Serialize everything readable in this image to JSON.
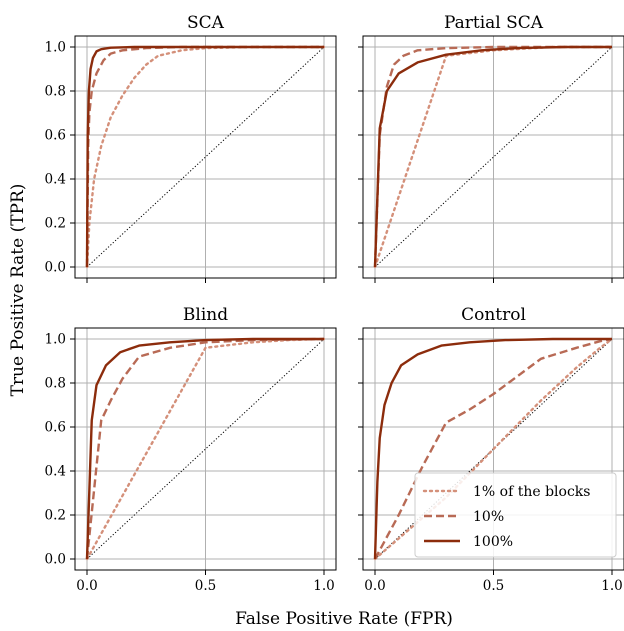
{
  "figure": {
    "xlabel": "False Positive Rate (FPR)",
    "ylabel": "True Positive Rate (TPR)"
  },
  "legend": {
    "entries": [
      {
        "label": "1% of the blocks",
        "style": "dotted",
        "color": "#d4907a"
      },
      {
        "label": "10%",
        "style": "dashed",
        "color": "#b86a55"
      },
      {
        "label": "100%",
        "style": "solid",
        "color": "#8c2c0c"
      }
    ],
    "panel": 3,
    "placement": "lower-right"
  },
  "chart_data": [
    {
      "type": "line",
      "title": "SCA",
      "xlim": [
        0,
        1
      ],
      "ylim": [
        0,
        1
      ],
      "x_ticks": [
        "0.0",
        "0.5",
        "1.0"
      ],
      "y_ticks": [
        "0.0",
        "0.2",
        "0.4",
        "0.6",
        "0.8",
        "1.0"
      ],
      "grid": true,
      "diagonal": true,
      "series": [
        {
          "name": "1% of the blocks",
          "points": [
            [
              0,
              0
            ],
            [
              0.01,
              0.2
            ],
            [
              0.03,
              0.4
            ],
            [
              0.06,
              0.55
            ],
            [
              0.1,
              0.68
            ],
            [
              0.15,
              0.78
            ],
            [
              0.2,
              0.86
            ],
            [
              0.25,
              0.92
            ],
            [
              0.3,
              0.96
            ],
            [
              0.4,
              0.985
            ],
            [
              0.5,
              0.995
            ],
            [
              0.7,
              1
            ],
            [
              1,
              1
            ]
          ]
        },
        {
          "name": "10%",
          "points": [
            [
              0,
              0
            ],
            [
              0.005,
              0.55
            ],
            [
              0.01,
              0.7
            ],
            [
              0.02,
              0.8
            ],
            [
              0.04,
              0.88
            ],
            [
              0.07,
              0.94
            ],
            [
              0.1,
              0.97
            ],
            [
              0.15,
              0.985
            ],
            [
              0.25,
              0.995
            ],
            [
              0.4,
              1
            ],
            [
              1,
              1
            ]
          ]
        },
        {
          "name": "100%",
          "points": [
            [
              0,
              0
            ],
            [
              0.003,
              0.6
            ],
            [
              0.008,
              0.8
            ],
            [
              0.015,
              0.9
            ],
            [
              0.025,
              0.95
            ],
            [
              0.04,
              0.98
            ],
            [
              0.06,
              0.99
            ],
            [
              0.1,
              0.997
            ],
            [
              0.2,
              1
            ],
            [
              1,
              1
            ]
          ]
        }
      ]
    },
    {
      "type": "line",
      "title": "Partial SCA",
      "xlim": [
        0,
        1
      ],
      "ylim": [
        0,
        1
      ],
      "x_ticks": [
        "0.0",
        "0.5",
        "1.0"
      ],
      "y_ticks": [
        "0.0",
        "0.2",
        "0.4",
        "0.6",
        "0.8",
        "1.0"
      ],
      "grid": true,
      "diagonal": true,
      "series": [
        {
          "name": "1% of the blocks",
          "points": [
            [
              0,
              0
            ],
            [
              0.3,
              0.96
            ],
            [
              0.5,
              0.985
            ],
            [
              0.75,
              1
            ],
            [
              1,
              1
            ]
          ]
        },
        {
          "name": "10%",
          "points": [
            [
              0,
              0
            ],
            [
              0.02,
              0.6
            ],
            [
              0.05,
              0.82
            ],
            [
              0.08,
              0.92
            ],
            [
              0.12,
              0.96
            ],
            [
              0.18,
              0.985
            ],
            [
              0.3,
              0.995
            ],
            [
              0.5,
              1
            ],
            [
              1,
              1
            ]
          ]
        },
        {
          "name": "100%",
          "points": [
            [
              0,
              0
            ],
            [
              0.02,
              0.63
            ],
            [
              0.05,
              0.8
            ],
            [
              0.1,
              0.88
            ],
            [
              0.18,
              0.93
            ],
            [
              0.3,
              0.965
            ],
            [
              0.45,
              0.985
            ],
            [
              0.6,
              0.995
            ],
            [
              0.8,
              1
            ],
            [
              1,
              1
            ]
          ]
        }
      ]
    },
    {
      "type": "line",
      "title": "Blind",
      "xlim": [
        0,
        1
      ],
      "ylim": [
        0,
        1
      ],
      "x_ticks": [
        "0.0",
        "0.5",
        "1.0"
      ],
      "y_ticks": [
        "0.0",
        "0.2",
        "0.4",
        "0.6",
        "0.8",
        "1.0"
      ],
      "grid": true,
      "diagonal": true,
      "series": [
        {
          "name": "1% of the blocks",
          "points": [
            [
              0,
              0
            ],
            [
              0.5,
              0.96
            ],
            [
              0.7,
              0.985
            ],
            [
              0.85,
              0.995
            ],
            [
              1,
              1
            ]
          ]
        },
        {
          "name": "10%",
          "points": [
            [
              0,
              0
            ],
            [
              0.06,
              0.63
            ],
            [
              0.1,
              0.72
            ],
            [
              0.15,
              0.82
            ],
            [
              0.22,
              0.92
            ],
            [
              0.35,
              0.96
            ],
            [
              0.5,
              0.985
            ],
            [
              0.7,
              0.995
            ],
            [
              1,
              1
            ]
          ]
        },
        {
          "name": "100%",
          "points": [
            [
              0,
              0
            ],
            [
              0.02,
              0.63
            ],
            [
              0.04,
              0.79
            ],
            [
              0.08,
              0.88
            ],
            [
              0.14,
              0.94
            ],
            [
              0.22,
              0.97
            ],
            [
              0.35,
              0.985
            ],
            [
              0.5,
              0.995
            ],
            [
              0.7,
              1
            ],
            [
              1,
              1
            ]
          ]
        }
      ]
    },
    {
      "type": "line",
      "title": "Control",
      "xlim": [
        0,
        1
      ],
      "ylim": [
        0,
        1
      ],
      "x_ticks": [
        "0.0",
        "0.5",
        "1.0"
      ],
      "y_ticks": [
        "0.0",
        "0.2",
        "0.4",
        "0.6",
        "0.8",
        "1.0"
      ],
      "grid": true,
      "diagonal": true,
      "series": [
        {
          "name": "1% of the blocks",
          "points": [
            [
              0,
              0
            ],
            [
              0.3,
              0.28
            ],
            [
              0.5,
              0.5
            ],
            [
              0.7,
              0.72
            ],
            [
              0.85,
              0.87
            ],
            [
              0.95,
              0.96
            ],
            [
              1,
              1
            ]
          ]
        },
        {
          "name": "10%",
          "points": [
            [
              0,
              0
            ],
            [
              0.1,
              0.2
            ],
            [
              0.2,
              0.42
            ],
            [
              0.3,
              0.62
            ],
            [
              0.4,
              0.68
            ],
            [
              0.5,
              0.75
            ],
            [
              0.6,
              0.83
            ],
            [
              0.7,
              0.91
            ],
            [
              0.85,
              0.96
            ],
            [
              0.95,
              0.99
            ],
            [
              1,
              1
            ]
          ]
        },
        {
          "name": "100%",
          "points": [
            [
              0,
              0
            ],
            [
              0.01,
              0.35
            ],
            [
              0.02,
              0.55
            ],
            [
              0.04,
              0.7
            ],
            [
              0.07,
              0.8
            ],
            [
              0.11,
              0.88
            ],
            [
              0.18,
              0.93
            ],
            [
              0.28,
              0.97
            ],
            [
              0.4,
              0.985
            ],
            [
              0.55,
              0.995
            ],
            [
              0.75,
              1
            ],
            [
              1,
              1
            ]
          ]
        }
      ]
    }
  ]
}
